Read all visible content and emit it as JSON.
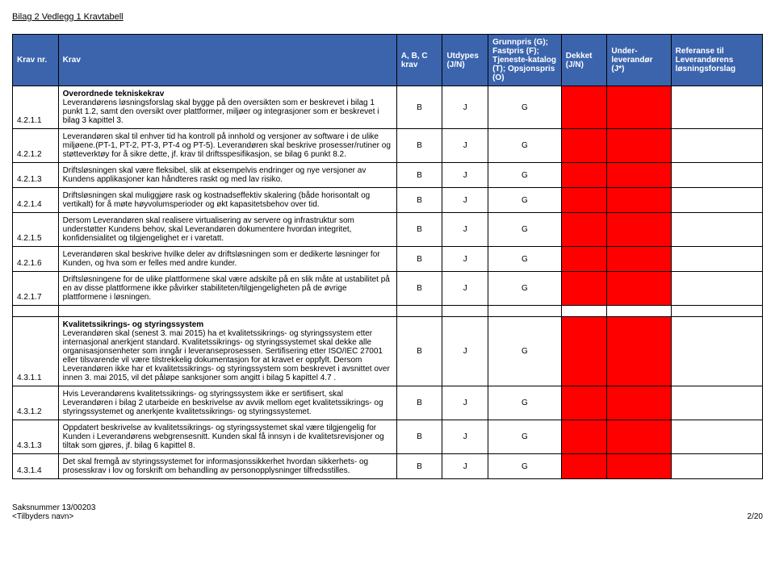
{
  "page": {
    "title": "Bilag 2 Vedlegg 1 Kravtabell",
    "saksnummer": "Saksnummer 13/00203",
    "tilbyder": "<Tilbyders navn>",
    "pageNum": "2/20"
  },
  "headers": {
    "kravnr": "Krav nr.",
    "krav": "Krav",
    "abc": "A, B, C krav",
    "utdypes": "Utdypes (J/N)",
    "grunnpris": "Grunnpris (G); Fastpris (F); Tjeneste-katalog (T); Opsjonspris (O)",
    "dekket": "Dekket (J/N)",
    "under": "Under-leverandør (J*)",
    "ref": "Referanse til Leverandørens løsningsforslag"
  },
  "sections": [
    {
      "title": "Overordnede tekniskekrav",
      "rows": [
        {
          "nr": "4.2.1.1",
          "text": "Leverandørens løsningsforslag skal bygge på den oversikten som er beskrevet i bilag 1 punkt 1.2,  samt den oversikt over plattformer, miljøer og integrasjoner som er beskrevet i bilag 3 kapittel 3.",
          "abc": "B",
          "utdypes": "J",
          "grunnpris": "G"
        },
        {
          "nr": "4.2.1.2",
          "text": "Leverandøren skal til enhver tid ha kontroll på innhold og versjoner av software i de ulike miljøene.(PT-1, PT-2, PT-3, PT-4 og PT-5). Leverandøren skal beskrive prosesser/rutiner og støtteverktøy for å sikre dette, jf. krav til driftsspesifikasjon, se bilag 6 punkt 8.2.",
          "abc": "B",
          "utdypes": "J",
          "grunnpris": "G"
        },
        {
          "nr": "4.2.1.3",
          "text": "Driftsløsningen skal være fleksibel, slik at eksempelvis endringer og nye versjoner av Kundens applikasjoner kan håndteres raskt og med lav risiko.",
          "abc": "B",
          "utdypes": "J",
          "grunnpris": "G"
        },
        {
          "nr": "4.2.1.4",
          "text": "Driftsløsningen skal muliggjøre rask og kostnadseffektiv skalering (både horisontalt og vertikalt) for å møte høyvolumsperioder og økt kapasitetsbehov over tid.",
          "abc": "B",
          "utdypes": "J",
          "grunnpris": "G"
        },
        {
          "nr": "4.2.1.5",
          "text": "Dersom Leverandøren skal realisere virtualisering av servere og infrastruktur som understøtter Kundens behov, skal Leverandøren dokumentere hvordan integritet, konfidensialitet og tilgjengelighet er i varetatt.",
          "abc": "B",
          "utdypes": "J",
          "grunnpris": "G"
        },
        {
          "nr": "4.2.1.6",
          "text": "Leverandøren skal beskrive hvilke deler av driftsløsningen som er dedikerte løsninger for Kunden, og hva som er felles med andre kunder.",
          "abc": "B",
          "utdypes": "J",
          "grunnpris": "G"
        },
        {
          "nr": "4.2.1.7",
          "text": "Driftsløsningene for de ulike plattformene skal være adskilte på en slik måte at ustabilitet på en av disse plattformene ikke påvirker stabiliteten/tilgjengeligheten på de øvrige plattformene i løsningen.",
          "abc": "B",
          "utdypes": "J",
          "grunnpris": "G"
        }
      ]
    },
    {
      "title": "Kvalitetssikrings- og styringssystem",
      "rows": [
        {
          "nr": "4.3.1.1",
          "text": "Leverandøren skal (senest 3. mai 2015) ha et kvalitetssikrings- og styringssystem etter internasjonal anerkjent standard. Kvalitetssikrings- og styringssystemet skal dekke alle organisasjonsenheter som inngår i leveranseprosessen.  Sertifisering etter ISO/IEC 27001 eller tilsvarende vil være tilstrekkelig dokumentasjon for at kravet er oppfylt.  Dersom Leverandøren ikke har et kvalitetssikrings- og styringssystem som beskrevet i avsnittet over innen 3. mai 2015, vil det påløpe sanksjoner som angitt i bilag 5 kapittel 4.7 .",
          "abc": "B",
          "utdypes": "J",
          "grunnpris": "G"
        },
        {
          "nr": "4.3.1.2",
          "text": "Hvis Leverandørens kvalitetssikrings- og styringssystem ikke er sertifisert, skal Leverandøren i bilag 2 utarbeide en beskrivelse av avvik mellom eget kvalitetssikrings- og styringssystemet og anerkjente kvalitetssikrings- og styringssystemet.",
          "abc": "B",
          "utdypes": "J",
          "grunnpris": "G"
        },
        {
          "nr": "4.3.1.3",
          "text": "Oppdatert beskrivelse av kvalitetssikrings- og styringssystemet skal være tilgjengelig for Kunden i Leverandørens webgrensesnitt. Kunden skal få innsyn i de kvalitetsrevisjoner og tiltak som gjøres, jf. bilag 6 kapittel 8.",
          "abc": "B",
          "utdypes": "J",
          "grunnpris": "G"
        },
        {
          "nr": "4.3.1.4",
          "text": "Det skal fremgå av styringssystemet for informasjonssikkerhet hvordan sikkerhets- og prosesskrav i lov og forskrift om behandling av personopplysninger tilfredsstilles.",
          "abc": "B",
          "utdypes": "J",
          "grunnpris": "G"
        }
      ]
    }
  ]
}
